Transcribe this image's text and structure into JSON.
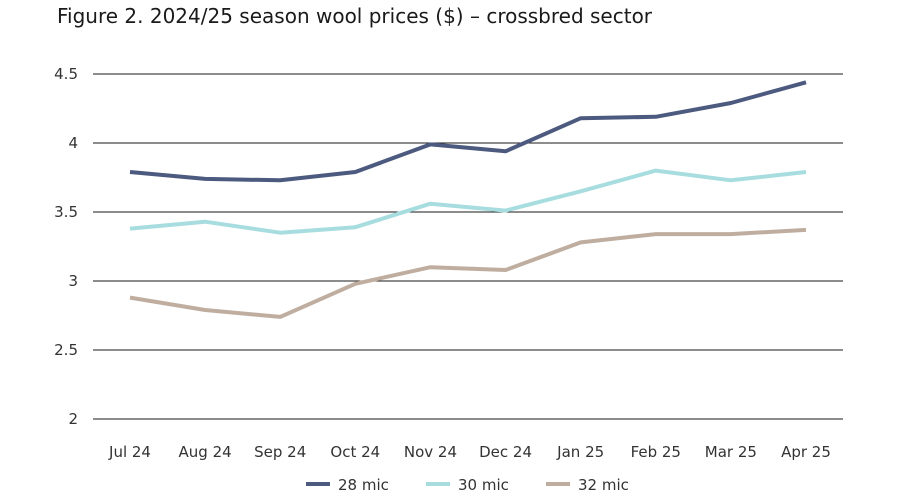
{
  "title": "Figure 2. 2024/25 season wool prices ($) – crossbred sector",
  "chart_data": {
    "type": "line",
    "title": "Figure 2. 2024/25 season wool prices ($) – crossbred sector",
    "xlabel": "",
    "ylabel": "",
    "categories": [
      "Jul 24",
      "Aug 24",
      "Sep 24",
      "Oct 24",
      "Nov 24",
      "Dec 24",
      "Jan 25",
      "Feb 25",
      "Mar 25",
      "Apr 25"
    ],
    "ylim": [
      2,
      4.5
    ],
    "yticks": [
      2,
      2.5,
      3,
      3.5,
      4,
      4.5
    ],
    "ytick_labels": [
      "2",
      "2.5",
      "3",
      "3.5",
      "4",
      "4.5"
    ],
    "grid": "horizontal",
    "legend_position": "bottom",
    "series": [
      {
        "name": "28 mic",
        "color": "#4d5a7f",
        "values": [
          3.79,
          3.74,
          3.73,
          3.79,
          3.99,
          3.94,
          4.18,
          4.19,
          4.29,
          4.44
        ]
      },
      {
        "name": "30 mic",
        "color": "#a8dde0",
        "values": [
          3.38,
          3.43,
          3.35,
          3.39,
          3.56,
          3.51,
          3.65,
          3.8,
          3.73,
          3.79
        ]
      },
      {
        "name": "32 mic",
        "color": "#bfaea0",
        "values": [
          2.88,
          2.79,
          2.74,
          2.98,
          3.1,
          3.08,
          3.28,
          3.34,
          3.34,
          3.37
        ]
      }
    ]
  }
}
